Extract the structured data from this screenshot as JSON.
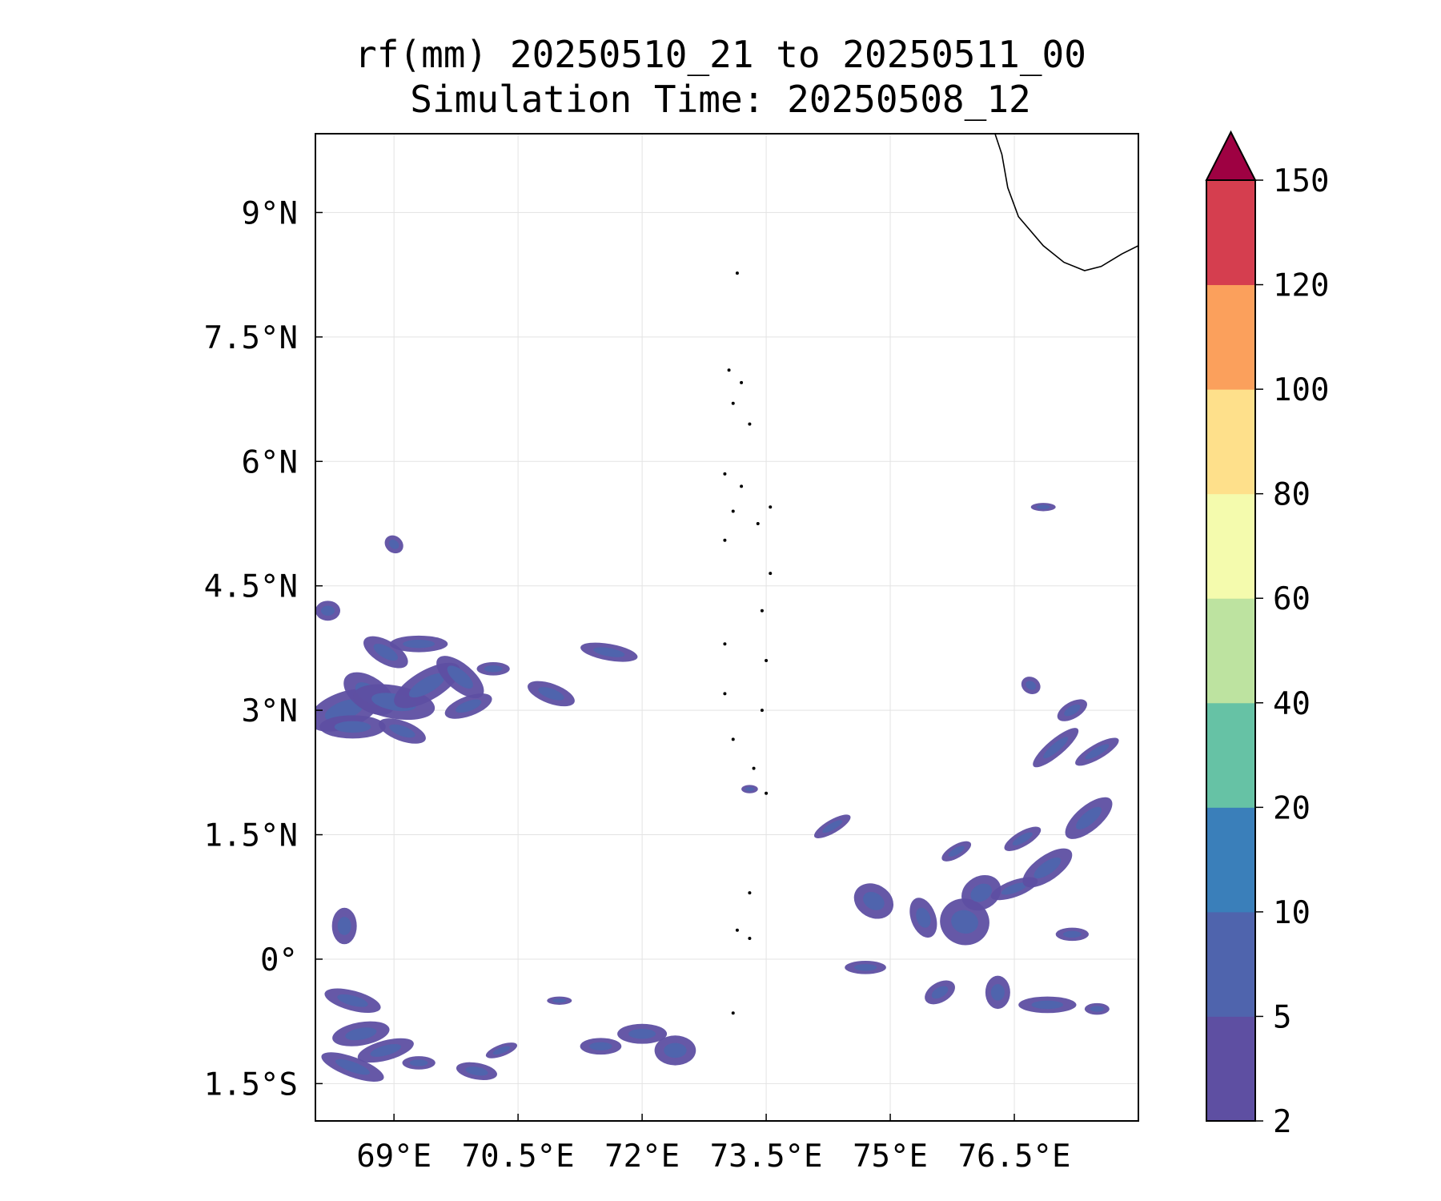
{
  "title": {
    "line1": "rf(mm) 20250510_21 to 20250511_00",
    "line2": "Simulation Time: 20250508_12"
  },
  "map": {
    "lon_range": [
      68.05,
      78.0
    ],
    "lat_range": [
      -1.95,
      9.95
    ],
    "lon_ticks": [
      {
        "value": 69.0,
        "label": "69°E"
      },
      {
        "value": 70.5,
        "label": "70.5°E"
      },
      {
        "value": 72.0,
        "label": "72°E"
      },
      {
        "value": 73.5,
        "label": "73.5°E"
      },
      {
        "value": 75.0,
        "label": "75°E"
      },
      {
        "value": 76.5,
        "label": "76.5°E"
      }
    ],
    "lat_ticks": [
      {
        "value": 9.0,
        "label": "9°N"
      },
      {
        "value": 7.5,
        "label": "7.5°N"
      },
      {
        "value": 6.0,
        "label": "6°N"
      },
      {
        "value": 4.5,
        "label": "4.5°N"
      },
      {
        "value": 3.0,
        "label": "3°N"
      },
      {
        "value": 1.5,
        "label": "1.5°N"
      },
      {
        "value": 0.0,
        "label": "0°"
      },
      {
        "value": -1.5,
        "label": "1.5°S"
      }
    ],
    "gridlines": true,
    "coastline_india": [
      [
        76.25,
        10.0
      ],
      [
        76.35,
        9.7
      ],
      [
        76.42,
        9.3
      ],
      [
        76.55,
        8.95
      ],
      [
        76.85,
        8.6
      ],
      [
        77.1,
        8.4
      ],
      [
        77.35,
        8.3
      ],
      [
        77.55,
        8.35
      ],
      [
        77.8,
        8.5
      ],
      [
        78.0,
        8.6
      ]
    ],
    "islands": [
      [
        73.15,
        8.27
      ],
      [
        73.05,
        7.1
      ],
      [
        73.2,
        6.95
      ],
      [
        73.1,
        6.7
      ],
      [
        73.3,
        6.45
      ],
      [
        73.0,
        5.85
      ],
      [
        73.2,
        5.7
      ],
      [
        73.1,
        5.4
      ],
      [
        73.4,
        5.25
      ],
      [
        73.55,
        5.45
      ],
      [
        73.0,
        5.05
      ],
      [
        73.55,
        4.65
      ],
      [
        73.45,
        4.2
      ],
      [
        73.0,
        3.8
      ],
      [
        73.5,
        3.6
      ],
      [
        73.0,
        3.2
      ],
      [
        73.45,
        3.0
      ],
      [
        73.1,
        2.65
      ],
      [
        73.35,
        2.3
      ],
      [
        73.5,
        2.0
      ],
      [
        73.3,
        0.8
      ],
      [
        73.15,
        0.35
      ],
      [
        73.3,
        0.25
      ],
      [
        73.1,
        -0.65
      ]
    ],
    "rain_patches": [
      [
        68.4,
        3.0,
        0.45,
        0.22,
        -20
      ],
      [
        68.7,
        3.2,
        0.35,
        0.2,
        35
      ],
      [
        69.0,
        3.1,
        0.5,
        0.2,
        10
      ],
      [
        69.4,
        3.3,
        0.45,
        0.18,
        -30
      ],
      [
        69.8,
        3.4,
        0.35,
        0.16,
        40
      ],
      [
        68.5,
        2.8,
        0.4,
        0.14,
        0
      ],
      [
        69.1,
        2.75,
        0.3,
        0.12,
        20
      ],
      [
        68.9,
        3.7,
        0.3,
        0.14,
        30
      ],
      [
        69.3,
        3.8,
        0.35,
        0.1,
        0
      ],
      [
        69.9,
        3.05,
        0.3,
        0.12,
        -20
      ],
      [
        70.9,
        3.2,
        0.3,
        0.12,
        20
      ],
      [
        71.6,
        3.7,
        0.35,
        0.1,
        10
      ],
      [
        70.2,
        3.5,
        0.2,
        0.08,
        0
      ],
      [
        68.2,
        4.2,
        0.15,
        0.12,
        0
      ],
      [
        69.0,
        5.0,
        0.12,
        0.1,
        40
      ],
      [
        68.4,
        0.4,
        0.15,
        0.22,
        0
      ],
      [
        68.5,
        -0.5,
        0.35,
        0.12,
        15
      ],
      [
        68.6,
        -0.9,
        0.35,
        0.14,
        -10
      ],
      [
        68.5,
        -1.3,
        0.4,
        0.12,
        20
      ],
      [
        68.9,
        -1.1,
        0.35,
        0.12,
        -15
      ],
      [
        69.3,
        -1.25,
        0.2,
        0.08,
        0
      ],
      [
        70.0,
        -1.35,
        0.25,
        0.1,
        10
      ],
      [
        71.5,
        -1.05,
        0.25,
        0.1,
        0
      ],
      [
        72.4,
        -1.1,
        0.25,
        0.18,
        0
      ],
      [
        74.3,
        1.6,
        0.25,
        0.08,
        -30
      ],
      [
        74.8,
        0.7,
        0.25,
        0.2,
        30
      ],
      [
        75.4,
        0.5,
        0.15,
        0.25,
        -20
      ],
      [
        75.9,
        0.45,
        0.3,
        0.28,
        15
      ],
      [
        76.5,
        0.85,
        0.3,
        0.1,
        -20
      ],
      [
        76.1,
        0.8,
        0.25,
        0.2,
        -30
      ],
      [
        76.9,
        1.1,
        0.35,
        0.15,
        -35
      ],
      [
        77.4,
        1.7,
        0.35,
        0.15,
        -40
      ],
      [
        76.6,
        1.45,
        0.25,
        0.09,
        -30
      ],
      [
        77.2,
        0.3,
        0.2,
        0.08,
        0
      ],
      [
        74.7,
        -0.1,
        0.25,
        0.08,
        0
      ],
      [
        75.6,
        -0.4,
        0.2,
        0.12,
        -30
      ],
      [
        76.3,
        -0.4,
        0.15,
        0.2,
        0
      ],
      [
        76.9,
        -0.55,
        0.35,
        0.1,
        0
      ],
      [
        77.5,
        -0.6,
        0.15,
        0.07,
        0
      ],
      [
        77.0,
        2.55,
        0.35,
        0.1,
        -40
      ],
      [
        77.5,
        2.5,
        0.3,
        0.09,
        -30
      ],
      [
        77.2,
        3.0,
        0.2,
        0.1,
        -30
      ],
      [
        76.7,
        3.3,
        0.12,
        0.1,
        30
      ],
      [
        76.85,
        5.45,
        0.15,
        0.05,
        0
      ],
      [
        75.8,
        1.3,
        0.2,
        0.08,
        -30
      ],
      [
        72.0,
        -0.9,
        0.3,
        0.12,
        0
      ],
      [
        71.0,
        -0.5,
        0.15,
        0.05,
        0
      ],
      [
        73.3,
        2.05,
        0.1,
        0.05,
        0
      ],
      [
        70.3,
        -1.1,
        0.2,
        0.07,
        -20
      ]
    ]
  },
  "colorbar": {
    "levels": [
      2,
      5,
      10,
      20,
      40,
      60,
      80,
      100,
      120,
      150
    ],
    "labels": [
      "2",
      "5",
      "10",
      "20",
      "40",
      "60",
      "80",
      "100",
      "120",
      "150"
    ],
    "colors": [
      "#5e4fa2",
      "#4f64ad",
      "#3a7fba",
      "#66c2a5",
      "#bde3a0",
      "#f4fbad",
      "#fee08b",
      "#fba05c",
      "#d53e4f"
    ],
    "extend_color": "#9e0142",
    "extend": "max"
  }
}
